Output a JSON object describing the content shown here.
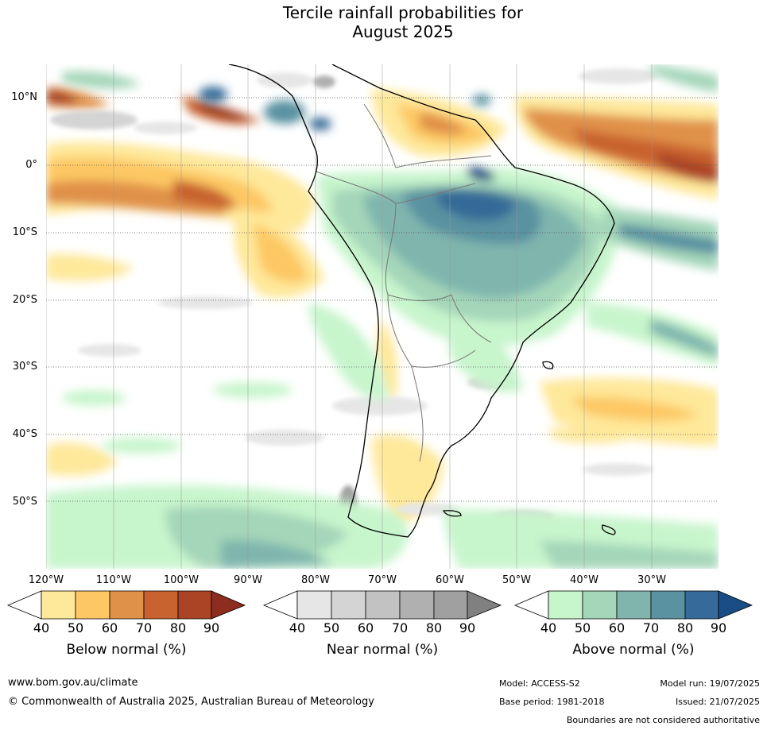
{
  "title": {
    "line1": "Tercile rainfall probabilities for",
    "line2": "August 2025"
  },
  "map": {
    "region": "South America",
    "lat_labels": [
      "10°N",
      "0°",
      "10°S",
      "20°S",
      "30°S",
      "40°S",
      "50°S"
    ],
    "lon_labels": [
      "120°W",
      "110°W",
      "100°W",
      "90°W",
      "80°W",
      "70°W",
      "60°W",
      "50°W",
      "40°W",
      "30°W"
    ]
  },
  "colorbars": [
    {
      "title": "Below normal (%)",
      "ticks": [
        "40",
        "50",
        "60",
        "70",
        "80",
        "90"
      ],
      "colors": [
        "#ffffff",
        "#fee89a",
        "#fdc863",
        "#e09148",
        "#c8622f",
        "#aa4425",
        "#8c2d1f"
      ]
    },
    {
      "title": "Near normal (%)",
      "ticks": [
        "40",
        "50",
        "60",
        "70",
        "80",
        "90"
      ],
      "colors": [
        "#ffffff",
        "#e6e6e6",
        "#d4d4d4",
        "#c2c2c2",
        "#b0b0b0",
        "#a0a0a0",
        "#808080"
      ]
    },
    {
      "title": "Above normal (%)",
      "ticks": [
        "40",
        "50",
        "60",
        "70",
        "80",
        "90"
      ],
      "colors": [
        "#ffffff",
        "#c7f5cc",
        "#a4d6b9",
        "#7fb5ad",
        "#5a92a1",
        "#366a98",
        "#1a4d86"
      ]
    }
  ],
  "footer": {
    "url": "www.bom.gov.au/climate",
    "copyright": "© Commonwealth of Australia 2025, Australian Bureau of Meteorology",
    "model": "Model: ACCESS-S2",
    "base_period": "Base period: 1981-2018",
    "model_run": "Model run: 19/07/2025",
    "issued": "Issued: 21/07/2025",
    "disclaimer": "Boundaries are not considered authoritative"
  }
}
